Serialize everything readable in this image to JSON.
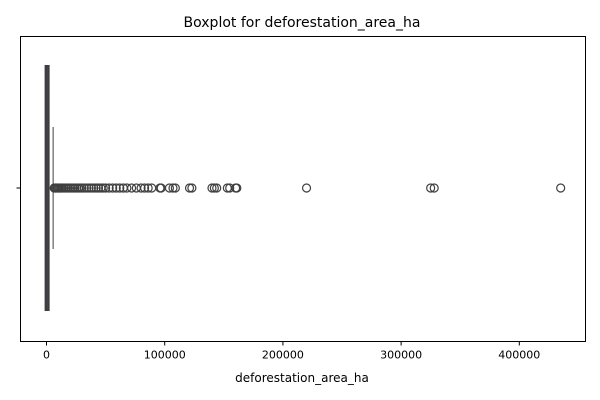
{
  "chart_data": {
    "type": "boxplot",
    "title": "Boxplot for deforestation_area_ha",
    "xlabel": "deforestation_area_ha",
    "ylabel": "",
    "xlim": [
      -22000,
      456000
    ],
    "xticks": [
      0,
      100000,
      200000,
      300000,
      400000
    ],
    "xtick_labels": [
      "0",
      "100000",
      "200000",
      "300000",
      "400000"
    ],
    "y_categories": [
      ""
    ],
    "grid": false,
    "box": {
      "q1": 80,
      "median": 220,
      "q3": 950,
      "whisker_low": 0,
      "whisker_high": 5600
    },
    "outliers": [
      6500,
      7500,
      8500,
      9500,
      10500,
      11500,
      12500,
      13500,
      15000,
      16500,
      18000,
      19500,
      21000,
      22500,
      24000,
      25500,
      27000,
      28500,
      30000,
      32000,
      34000,
      36000,
      38000,
      40000,
      42000,
      44000,
      46000,
      48000,
      50000,
      53000,
      56000,
      59000,
      62000,
      65000,
      68000,
      72000,
      76000,
      80000,
      83000,
      86000,
      89000,
      96000,
      97000,
      104000,
      107000,
      109000,
      121000,
      123000,
      140000,
      142000,
      144000,
      153000,
      155000,
      160000,
      161000,
      220000,
      325000,
      328000,
      435000
    ],
    "colors": {
      "box_edge": "#3f3f3f",
      "box_fill": "#3a78b8",
      "outlier_edge": "#3f3f3f"
    }
  }
}
